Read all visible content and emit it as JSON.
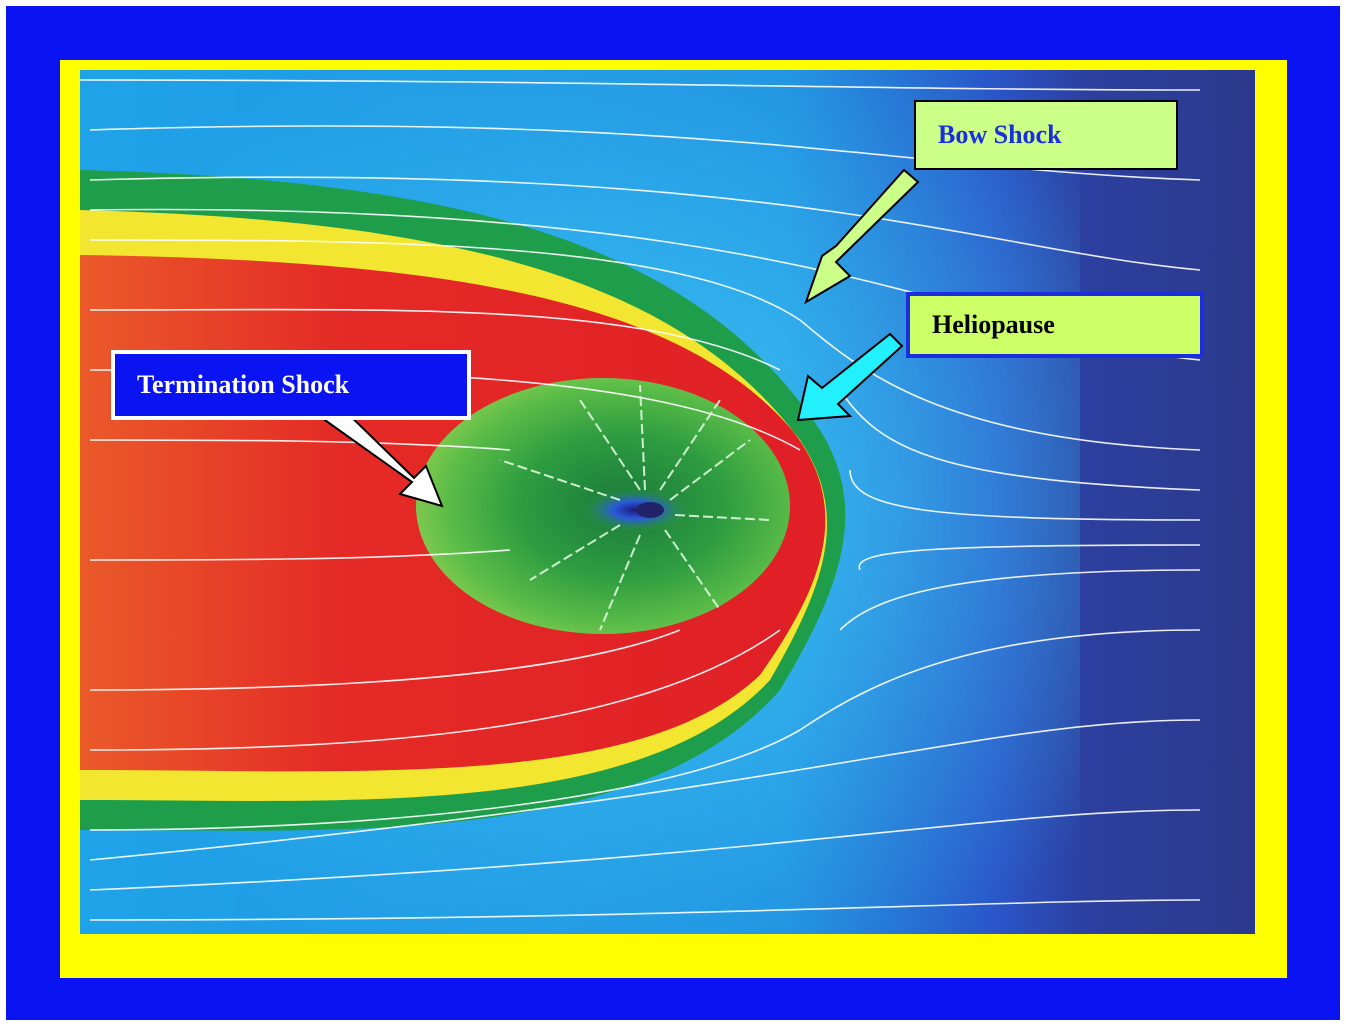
{
  "labels": {
    "bow_shock": "Bow Shock",
    "heliopause": "Heliopause",
    "termination_shock": "Termination Shock"
  },
  "colors": {
    "outer_border": "#0a14f2",
    "frame": "#ffff00",
    "interstellar_medium": "#1a1a55",
    "heliosheath": "#e01f26",
    "solar_wind_region": "#3fb04a",
    "streamlines": "#ffffff"
  }
}
